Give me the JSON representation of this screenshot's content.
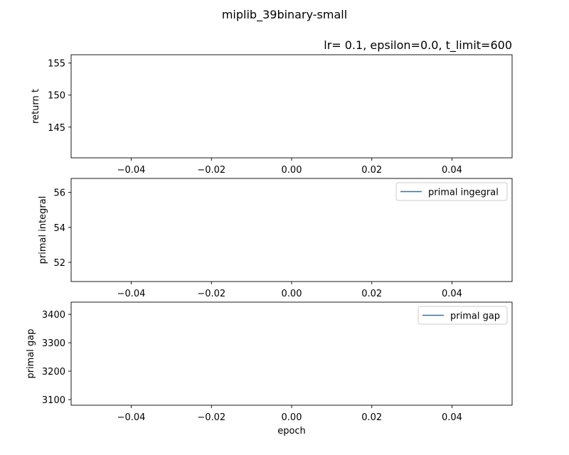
{
  "figure": {
    "suptitle": "miplib_39binary-small",
    "subtitle": "lr= 0.1, epsilon=0.0, t_limit=600"
  },
  "chart_data": [
    {
      "type": "line",
      "title": "lr= 0.1, epsilon=0.0, t_limit=600",
      "xlabel": "",
      "ylabel": "return t",
      "xlim": [
        -0.055,
        0.055
      ],
      "ylim": [
        140.2,
        156.3
      ],
      "xticks": [
        -0.04,
        -0.02,
        0.0,
        0.02,
        0.04
      ],
      "xtick_labels": [
        "−0.04",
        "−0.02",
        "0.00",
        "0.02",
        "0.04"
      ],
      "yticks": [
        145,
        150,
        155
      ],
      "ytick_labels": [
        "145",
        "150",
        "155"
      ],
      "series": [],
      "legend": null,
      "grid": false
    },
    {
      "type": "line",
      "title": "",
      "xlabel": "",
      "ylabel": "primal integral",
      "xlim": [
        -0.055,
        0.055
      ],
      "ylim": [
        50.9,
        56.8
      ],
      "xticks": [
        -0.04,
        -0.02,
        0.0,
        0.02,
        0.04
      ],
      "xtick_labels": [
        "−0.04",
        "−0.02",
        "0.00",
        "0.02",
        "0.04"
      ],
      "yticks": [
        52,
        54,
        56
      ],
      "ytick_labels": [
        "52",
        "54",
        "56"
      ],
      "series": [
        {
          "name": "primal ingegral",
          "color": "#1f77b4",
          "x": [],
          "values": []
        }
      ],
      "legend": "upper right",
      "grid": false
    },
    {
      "type": "line",
      "title": "",
      "xlabel": "epoch",
      "ylabel": "primal gap",
      "xlim": [
        -0.055,
        0.055
      ],
      "ylim": [
        3080,
        3443
      ],
      "xticks": [
        -0.04,
        -0.02,
        0.0,
        0.02,
        0.04
      ],
      "xtick_labels": [
        "−0.04",
        "−0.02",
        "0.00",
        "0.02",
        "0.04"
      ],
      "yticks": [
        3100,
        3200,
        3300,
        3400
      ],
      "ytick_labels": [
        "3100",
        "3200",
        "3300",
        "3400"
      ],
      "series": [
        {
          "name": "primal gap",
          "color": "#1f77b4",
          "x": [],
          "values": []
        }
      ],
      "legend": "upper right",
      "grid": false
    }
  ]
}
